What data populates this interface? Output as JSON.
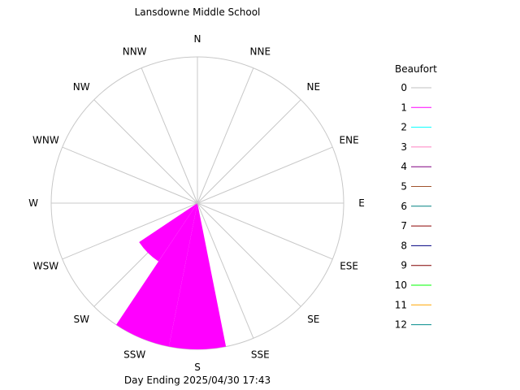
{
  "chart_data": {
    "type": "windrose",
    "title": "Lansdowne Middle School",
    "footer": "Day Ending 2025/04/30 17:43",
    "directions": [
      "N",
      "NNE",
      "NE",
      "ENE",
      "E",
      "ESE",
      "SE",
      "SSE",
      "S",
      "SSW",
      "SW",
      "WSW",
      "W",
      "WNW",
      "NW",
      "NNW"
    ],
    "legend": {
      "title": "Beaufort",
      "placement": "right",
      "entries": [
        {
          "label": "0",
          "color": "#c0c0c0"
        },
        {
          "label": "1",
          "color": "#ff00ff"
        },
        {
          "label": "2",
          "color": "#00ffff"
        },
        {
          "label": "3",
          "color": "#ff80c0"
        },
        {
          "label": "4",
          "color": "#800080"
        },
        {
          "label": "5",
          "color": "#a0522d"
        },
        {
          "label": "6",
          "color": "#008080"
        },
        {
          "label": "7",
          "color": "#8b0000"
        },
        {
          "label": "8",
          "color": "#000080"
        },
        {
          "label": "9",
          "color": "#800000"
        },
        {
          "label": "10",
          "color": "#00ff00"
        },
        {
          "label": "11",
          "color": "#ffa500"
        },
        {
          "label": "12",
          "color": "#008b8b"
        }
      ]
    },
    "petals": [
      {
        "direction": "S",
        "beaufort": "0",
        "fraction": 0.01
      },
      {
        "direction": "S",
        "beaufort": "1",
        "fraction": 1.0
      },
      {
        "direction": "SSW",
        "beaufort": "0",
        "fraction": 0.01
      },
      {
        "direction": "SSW",
        "beaufort": "1",
        "fraction": 1.0
      },
      {
        "direction": "SW",
        "beaufort": "1",
        "fraction": 0.48
      }
    ],
    "grid": true
  }
}
